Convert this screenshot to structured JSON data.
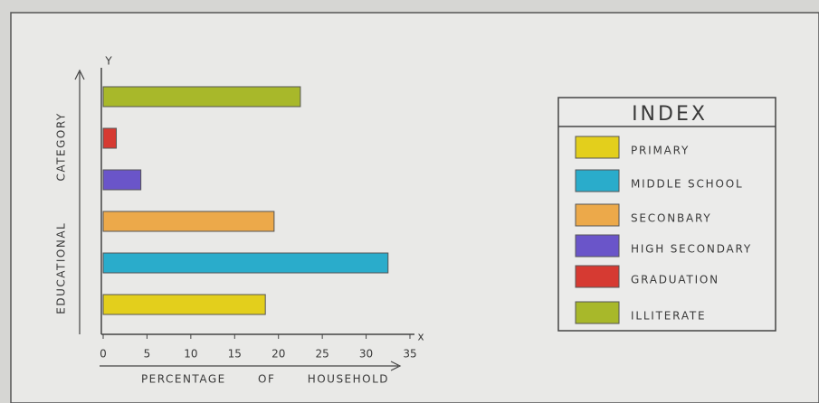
{
  "chart_data": {
    "type": "bar",
    "orientation": "horizontal",
    "x_label": "PERCENTAGE OF HOUSEHOLD",
    "y_label": "EDUCATIONAL CATEGORY",
    "x_axis_letter": "x",
    "y_axis_letter": "Y",
    "legend_title": "INDEX",
    "categories": [
      "PRIMARY",
      "MIDDLE SCHOOL",
      "SECONBARY",
      "HIGH SECONDARY",
      "GRADUATION",
      "ILLITERATE"
    ],
    "colors": [
      "#e3cf1c",
      "#2aaccb",
      "#eca94a",
      "#6a55c9",
      "#d63a32",
      "#a8b82a"
    ],
    "values": [
      18.5,
      32.5,
      19.5,
      4.3,
      1.5,
      22.5
    ],
    "xlim": [
      0,
      35
    ],
    "xticks": [
      0,
      5,
      10,
      15,
      20,
      25,
      30,
      35
    ],
    "legend": "right"
  }
}
